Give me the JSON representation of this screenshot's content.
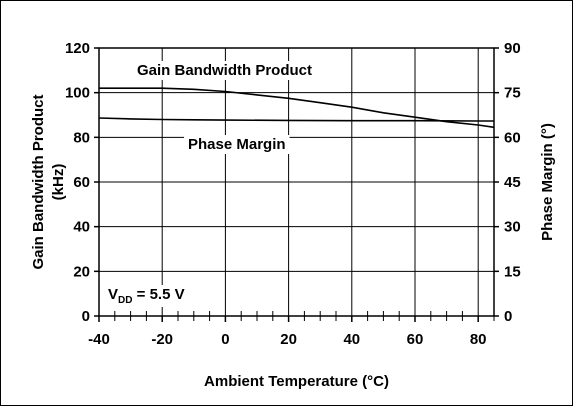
{
  "chart_data": {
    "type": "line",
    "xlabel": "Ambient Temperature (°C)",
    "ylabel_left_line1": "Gain Bandwidth Product",
    "ylabel_left_line2": "(kHz)",
    "ylabel_right": "Phase Margin (°)",
    "xlim": [
      -40,
      85
    ],
    "ylim_left": [
      0,
      120
    ],
    "ylim_right": [
      0,
      90
    ],
    "xticks": [
      -40,
      -20,
      0,
      20,
      40,
      60,
      80
    ],
    "xtick_labels": [
      "-40",
      "-20",
      "0",
      "20",
      "40",
      "60",
      "80"
    ],
    "yticks_left": [
      0,
      20,
      40,
      60,
      80,
      100,
      120
    ],
    "ytick_labels_left": [
      "0",
      "20",
      "40",
      "60",
      "80",
      "100",
      "120"
    ],
    "yticks_right": [
      0,
      15,
      30,
      45,
      60,
      75,
      90
    ],
    "ytick_labels_right": [
      "0",
      "15",
      "30",
      "45",
      "60",
      "75",
      "90"
    ],
    "grid": true,
    "series": [
      {
        "name": "Gain Bandwidth Product",
        "axis": "left",
        "x": [
          -40,
          -30,
          -20,
          -10,
          0,
          10,
          20,
          30,
          40,
          50,
          60,
          70,
          80,
          85
        ],
        "y": [
          102,
          102,
          102,
          101.5,
          100.5,
          99,
          97.5,
          95.5,
          93.5,
          91,
          89,
          87,
          85.5,
          84.5
        ]
      },
      {
        "name": "Phase Margin",
        "axis": "right",
        "x": [
          -40,
          -30,
          -20,
          -10,
          0,
          20,
          40,
          60,
          80,
          85
        ],
        "y": [
          66.5,
          66.2,
          66,
          65.9,
          65.8,
          65.7,
          65.6,
          65.6,
          65.5,
          65.5
        ]
      }
    ],
    "annotations": {
      "vdd_main": "V",
      "vdd_sub": "DD",
      "vdd_rest": " = 5.5 V"
    }
  }
}
